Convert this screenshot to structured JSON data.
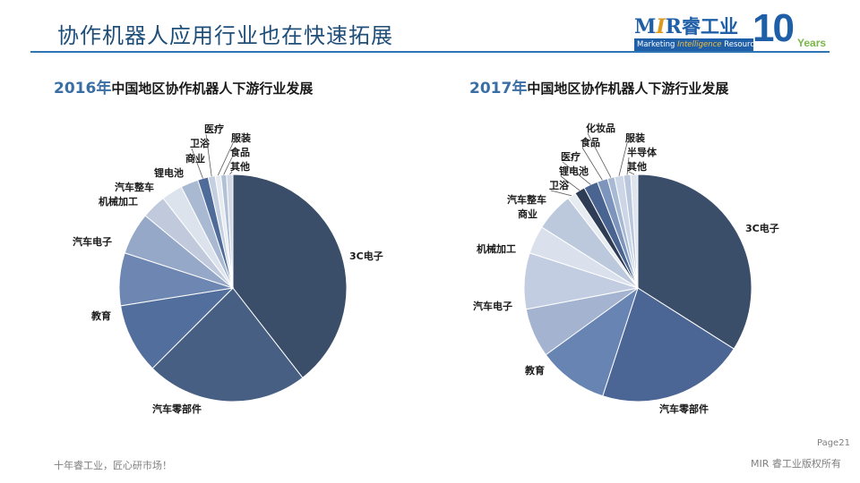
{
  "header": {
    "title": "协作机器人应用行业也在快速拓展"
  },
  "logo": {
    "mir_m": "M",
    "mir_i": "I",
    "mir_r": "R",
    "mir_cn": "睿工业",
    "tagline_a": "Marketing ",
    "tagline_b": "Intelligence",
    "tagline_c": " Resource",
    "ten": "10",
    "years": "Years"
  },
  "colors": {
    "accent": "#2e75b6",
    "title": "#1f4e79",
    "year": "#3a6ea5"
  },
  "chart_data": [
    {
      "type": "pie",
      "title_year": "2016年",
      "title_text": "中国地区协作机器人下游行业发展",
      "slices": [
        {
          "label": "3C电子",
          "value": 39.5,
          "color": "#3a4d69"
        },
        {
          "label": "汽车零部件",
          "value": 23.0,
          "color": "#485f84"
        },
        {
          "label": "教育",
          "value": 10.0,
          "color": "#526e9c"
        },
        {
          "label": "汽车电子",
          "value": 7.5,
          "color": "#6d87b2"
        },
        {
          "label": "机械加工",
          "value": 6.0,
          "color": "#96a8c8"
        },
        {
          "label": "汽车整车",
          "value": 3.5,
          "color": "#c0cadc"
        },
        {
          "label": "锂电池",
          "value": 3.0,
          "color": "#dde3ec"
        },
        {
          "label": "商业",
          "value": 2.5,
          "color": "#a9b9d2"
        },
        {
          "label": "卫浴",
          "value": 1.5,
          "color": "#4f6b9a"
        },
        {
          "label": "医疗",
          "value": 1.0,
          "color": "#c4cfe0"
        },
        {
          "label": "服装",
          "value": 0.8,
          "color": "#e6eaf1"
        },
        {
          "label": "食品",
          "value": 0.8,
          "color": "#b3c1d7"
        },
        {
          "label": "其他",
          "value": 0.9,
          "color": "#d1d9e6"
        }
      ]
    },
    {
      "type": "pie",
      "title_year": "2017年",
      "title_text": "中国地区协作机器人下游行业发展",
      "slices": [
        {
          "label": "3C电子",
          "value": 34.0,
          "color": "#3a4d69"
        },
        {
          "label": "汽车零部件",
          "value": 21.0,
          "color": "#4b6694"
        },
        {
          "label": "教育",
          "value": 10.0,
          "color": "#6784b3"
        },
        {
          "label": "汽车电子",
          "value": 7.0,
          "color": "#a3b3d0"
        },
        {
          "label": "机械加工",
          "value": 8.0,
          "color": "#c3cde1"
        },
        {
          "label": "商业",
          "value": 4.0,
          "color": "#dbe1ec"
        },
        {
          "label": "汽车整车",
          "value": 5.5,
          "color": "#bcc8dc"
        },
        {
          "label": "卫浴",
          "value": 1.2,
          "color": "#e7ebf2"
        },
        {
          "label": "锂电池",
          "value": 1.5,
          "color": "#2e3d55"
        },
        {
          "label": "医疗",
          "value": 2.0,
          "color": "#4a6491"
        },
        {
          "label": "食品",
          "value": 1.5,
          "color": "#7d95bd"
        },
        {
          "label": "化妆品",
          "value": 1.0,
          "color": "#a8b9d4"
        },
        {
          "label": "服装",
          "value": 1.3,
          "color": "#ccd6e6"
        },
        {
          "label": "半导体",
          "value": 1.0,
          "color": "#b9c6db"
        },
        {
          "label": "其他",
          "value": 1.0,
          "color": "#dfe5ee"
        }
      ]
    }
  ],
  "footer": {
    "page": "Page21",
    "left": "十年睿工业，匠心研市场！",
    "right": "MIR 睿工业版权所有"
  }
}
